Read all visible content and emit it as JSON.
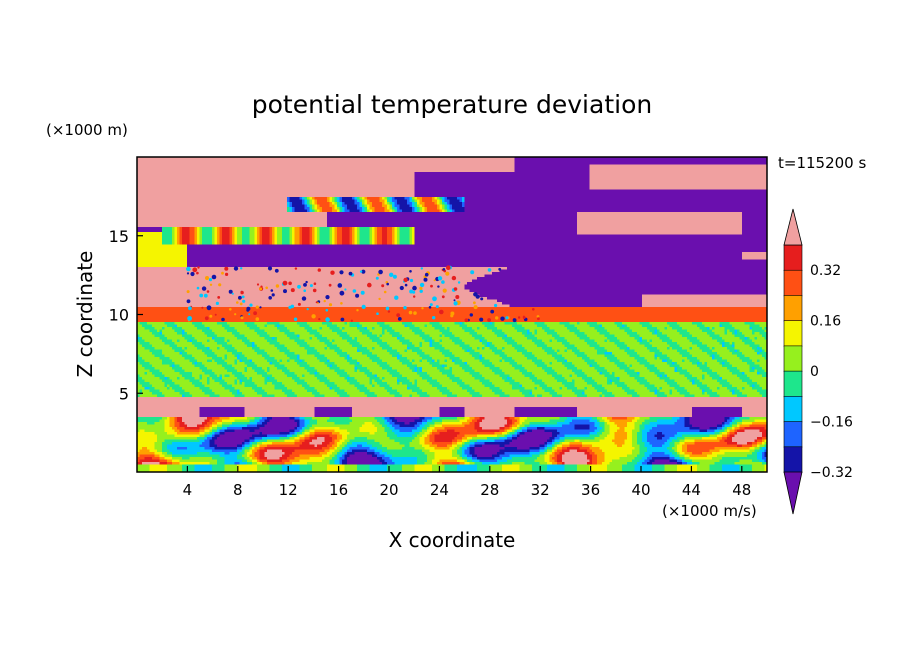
{
  "chart_data": {
    "type": "heatmap",
    "title": "potential temperature deviation",
    "xlabel": "X coordinate",
    "ylabel": "Z coordinate",
    "x_unit": "(×1000 m/s)",
    "y_unit": "(×1000 m)",
    "time_label": "t=115200 s",
    "xlim": [
      0,
      50
    ],
    "ylim": [
      0,
      20
    ],
    "x_ticks": [
      "4",
      "8",
      "12",
      "16",
      "20",
      "24",
      "28",
      "32",
      "36",
      "40",
      "44",
      "48"
    ],
    "y_ticks": [
      "5",
      "10",
      "15"
    ],
    "x_tick_values": [
      4,
      8,
      12,
      16,
      20,
      24,
      28,
      32,
      36,
      40,
      44,
      48
    ],
    "y_tick_values": [
      5,
      10,
      15
    ],
    "colorbar": {
      "labels": [
        "0.32",
        "0.16",
        "0",
        "−0.16",
        "−0.32"
      ],
      "label_values": [
        0.32,
        0.16,
        0,
        -0.16,
        -0.32
      ],
      "levels": [
        -0.4,
        -0.32,
        -0.24,
        -0.16,
        -0.08,
        0,
        0.08,
        0.16,
        0.24,
        0.32,
        0.4
      ],
      "colors": [
        "#6a0fae",
        "#1414a8",
        "#1e64ff",
        "#00c8ff",
        "#1ee68c",
        "#96f01e",
        "#f5f500",
        "#ffa000",
        "#ff5014",
        "#e61e1e",
        "#f0a0a0"
      ],
      "extend": "both"
    },
    "layers": [
      {
        "z_range": [
          0,
          3.5
        ],
        "description_value": "mixed"
      },
      {
        "z_range": [
          4.2,
          4.7
        ],
        "value": 0.45
      },
      {
        "z_range": [
          4.7,
          9.5
        ],
        "value": 0.05
      },
      {
        "z_range": [
          9.5,
          10.5
        ],
        "value": 0.3
      },
      {
        "z_range": [
          10.5,
          13
        ],
        "value": 0.45
      },
      {
        "z_range": [
          13,
          20
        ],
        "value": -0.45
      }
    ]
  }
}
